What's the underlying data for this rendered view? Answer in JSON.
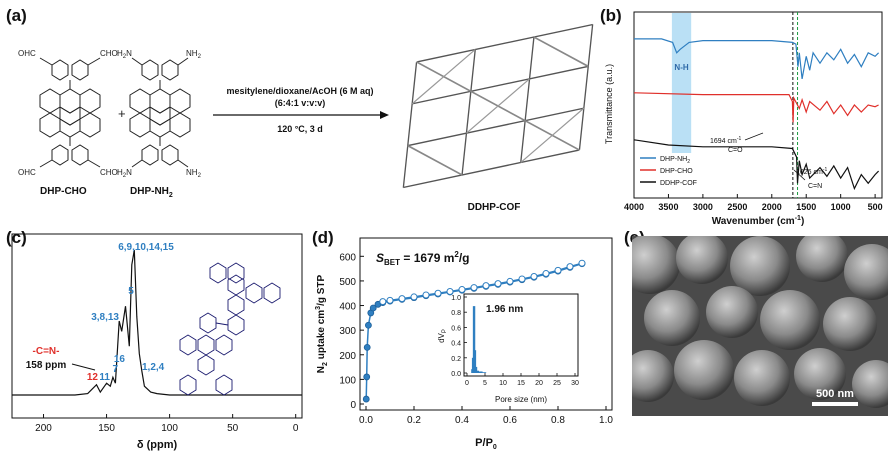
{
  "panels": {
    "a": {
      "label": "(a)",
      "reactant1": "DHP-CHO",
      "reactant2": "DHP-NH",
      "reactant2_sub": "2",
      "plus": "+",
      "cho_group": "OHC",
      "cho_group_r": "CHO",
      "nh2_group": "H",
      "nh2_group_sub": "2",
      "nh2_group_n": "N",
      "nh2_group_r": "NH",
      "condition_line1": "mesitylene/dioxane/AcOH (6 M aq)",
      "condition_line2": "(6:4:1 v:v:v)",
      "condition_line3": "120 °C, 3 d",
      "product": "DDHP-COF"
    },
    "b": {
      "label": "(b)",
      "ylabel": "Transmittance (a.u.)",
      "xlabel": "Wavenumber (cm",
      "xlabel_sup": "-1",
      "xlabel_end": ")",
      "ticks": [
        "4000",
        "3500",
        "3000",
        "2500",
        "2000",
        "1500",
        "1000",
        "500"
      ],
      "band_label": "N-H",
      "ann1_line1": "1694 cm",
      "ann1_sup": "-1",
      "ann1_line2": "C=O",
      "ann2_line1": "1626 cm",
      "ann2_sup": "-1",
      "ann2_line2": "C=N",
      "legend": [
        {
          "name": "DHP-NH",
          "sub": "2",
          "color": "#2f7fc1"
        },
        {
          "name": "DHP-CHO",
          "sub": "",
          "color": "#e0302b"
        },
        {
          "name": "DDHP-COF",
          "sub": "",
          "color": "#111111"
        }
      ]
    },
    "c": {
      "label": "(c)",
      "xlabel": "δ (ppm)",
      "ticks": [
        "200",
        "150",
        "100",
        "50",
        "0"
      ],
      "peaks": [
        {
          "text": "6,9,10,14,15",
          "color": "#2f7fc1"
        },
        {
          "text": "5",
          "color": "#2f7fc1"
        },
        {
          "text": "3,8,13",
          "color": "#2f7fc1"
        },
        {
          "text": "16",
          "color": "#2f7fc1"
        },
        {
          "text": "11",
          "color": "#2f7fc1"
        },
        {
          "text": "7",
          "color": "#2f7fc1"
        },
        {
          "text": "12",
          "color": "#e0302b"
        },
        {
          "text": "1,2,4",
          "color": "#2f7fc1"
        }
      ],
      "imine_label": "-C=N-",
      "imine_ppm": "158 ppm"
    },
    "d": {
      "label": "(d)",
      "sbet_s": "S",
      "sbet_sub": "BET",
      "sbet_value": " = 1679 m",
      "sbet_sup": "2",
      "sbet_unit": "/g",
      "ylabel_a": "N",
      "ylabel_sub": "2",
      "ylabel_b": " uptake cm",
      "ylabel_sup": "3",
      "ylabel_c": "/g STP",
      "xlabel": "P/P",
      "xlabel_sub": "0",
      "yticks": [
        "0",
        "100",
        "200",
        "300",
        "400",
        "500",
        "600"
      ],
      "xticks": [
        "0.0",
        "0.2",
        "0.4",
        "0.6",
        "0.8",
        "1.0"
      ],
      "inset_ylabel_a": "dV",
      "inset_ylabel_sub": "P",
      "inset_xlabel": "Pore size (nm)",
      "inset_yticks": [
        "0.0",
        "0.2",
        "0.4",
        "0.6",
        "0.8",
        "1.0"
      ],
      "inset_xticks": [
        "0",
        "5",
        "10",
        "15",
        "20",
        "25",
        "30"
      ],
      "inset_peak": "1.96 nm"
    },
    "e": {
      "label": "(e)",
      "scale_bar": "500 nm"
    }
  },
  "chart_data": [
    {
      "type": "line",
      "title": "",
      "xlabel": "Wavenumber (cm-1)",
      "ylabel": "Transmittance (a.u.)",
      "xlim": [
        4000,
        400
      ],
      "series": [
        {
          "name": "DHP-NH2",
          "color": "#2f7fc1",
          "x": [
            4000,
            3600,
            3440,
            3380,
            3330,
            3200,
            3000,
            2500,
            2000,
            1700,
            1650,
            1620,
            1600,
            1560,
            1500,
            1450,
            1400,
            1300,
            1200,
            1100,
            1000,
            900,
            800,
            700,
            600,
            500,
            450
          ],
          "y": [
            0.88,
            0.88,
            0.86,
            0.8,
            0.82,
            0.86,
            0.87,
            0.87,
            0.87,
            0.86,
            0.85,
            0.72,
            0.8,
            0.65,
            0.78,
            0.7,
            0.8,
            0.74,
            0.8,
            0.76,
            0.82,
            0.74,
            0.79,
            0.72,
            0.8,
            0.78,
            0.8
          ]
        },
        {
          "name": "DHP-CHO",
          "color": "#e0302b",
          "x": [
            4000,
            3000,
            2500,
            2000,
            1750,
            1700,
            1690,
            1680,
            1600,
            1560,
            1500,
            1450,
            1300,
            1200,
            1100,
            1000,
            900,
            800,
            700,
            600,
            500,
            450
          ],
          "y": [
            0.57,
            0.56,
            0.56,
            0.56,
            0.56,
            0.52,
            0.4,
            0.54,
            0.48,
            0.53,
            0.46,
            0.52,
            0.47,
            0.52,
            0.45,
            0.5,
            0.44,
            0.5,
            0.46,
            0.5,
            0.49,
            0.5
          ]
        },
        {
          "name": "DDHP-COF",
          "color": "#111111",
          "x": [
            4000,
            3500,
            3000,
            2500,
            2000,
            1700,
            1640,
            1626,
            1600,
            1560,
            1500,
            1450,
            1300,
            1200,
            1100,
            1000,
            900,
            800,
            700,
            600,
            500,
            450
          ],
          "y": [
            0.3,
            0.27,
            0.26,
            0.26,
            0.26,
            0.25,
            0.2,
            0.05,
            0.18,
            0.1,
            0.16,
            0.08,
            0.14,
            0.09,
            0.15,
            0.08,
            0.14,
            0.02,
            0.1,
            0.05,
            0.1,
            0.12
          ]
        }
      ]
    },
    {
      "type": "line",
      "title": "",
      "xlabel": "δ (ppm)",
      "ylabel": "",
      "xlim": [
        225,
        -5
      ],
      "series": [
        {
          "name": "",
          "x": [
            225,
            200,
            175,
            165,
            158,
            155,
            150,
            147,
            145,
            143,
            140,
            138,
            135,
            132,
            130,
            128,
            126,
            124,
            122,
            120,
            115,
            110,
            100,
            75,
            50,
            25,
            0,
            -5
          ],
          "y": [
            0.02,
            0.02,
            0.02,
            0.03,
            0.09,
            0.04,
            0.1,
            0.08,
            0.14,
            0.1,
            0.52,
            0.45,
            0.62,
            0.35,
            0.9,
            1.0,
            0.55,
            0.3,
            0.18,
            0.08,
            0.04,
            0.03,
            0.02,
            0.02,
            0.02,
            0.02,
            0.02,
            0.02
          ]
        }
      ]
    },
    {
      "type": "scatter",
      "title": "",
      "xlabel": "P/P0",
      "ylabel": "N2 uptake cm3/g STP",
      "xlim": [
        0,
        1.0
      ],
      "ylim": [
        0,
        650
      ],
      "series": [
        {
          "name": "adsorption",
          "x": [
            0.001,
            0.003,
            0.005,
            0.01,
            0.02,
            0.03,
            0.05,
            0.07,
            0.1,
            0.15,
            0.2,
            0.25,
            0.3,
            0.35,
            0.4,
            0.45,
            0.5,
            0.55,
            0.6,
            0.65,
            0.7,
            0.75,
            0.8,
            0.85,
            0.9
          ],
          "y": [
            20,
            110,
            230,
            320,
            370,
            390,
            405,
            412,
            418,
            425,
            432,
            440,
            447,
            455,
            462,
            470,
            478,
            486,
            495,
            505,
            515,
            527,
            540,
            555,
            570
          ]
        },
        {
          "name": "desorption",
          "x": [
            0.9,
            0.85,
            0.8,
            0.75,
            0.7,
            0.65,
            0.6,
            0.55,
            0.5,
            0.45,
            0.4,
            0.35,
            0.3,
            0.25,
            0.2,
            0.15,
            0.1,
            0.07
          ],
          "y": [
            572,
            558,
            543,
            530,
            518,
            508,
            498,
            489,
            481,
            473,
            465,
            457,
            450,
            443,
            435,
            428,
            421,
            416
          ]
        }
      ]
    },
    {
      "type": "bar",
      "title": "",
      "xlabel": "Pore size (nm)",
      "ylabel": "dVP",
      "xlim": [
        0,
        30
      ],
      "ylim": [
        0,
        1.0
      ],
      "x": [
        1.5,
        1.7,
        1.96,
        2.2,
        2.5,
        3.0,
        3.5,
        4.0,
        4.5,
        5.0
      ],
      "values": [
        0.05,
        0.2,
        0.88,
        0.3,
        0.08,
        0.03,
        0.02,
        0.02,
        0.01,
        0.01
      ]
    }
  ]
}
